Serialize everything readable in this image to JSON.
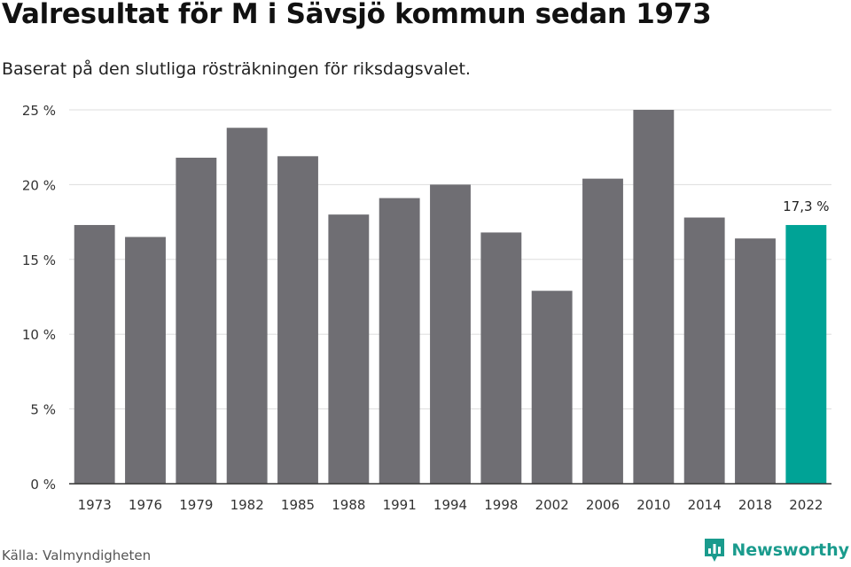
{
  "header": {
    "title": "Valresultat för M i Sävsjö kommun sedan 1973",
    "subtitle": "Baserat på den slutliga rösträkningen för riksdagsvalet."
  },
  "footer": {
    "source": "Källa: Valmyndigheten",
    "brand": "Newsworthy",
    "brand_icon": "bar-chart-logo-icon"
  },
  "colors": {
    "bar": "#6f6e73",
    "highlight": "#00a396",
    "grid": "#dddddd",
    "axis": "#333333",
    "brand": "#1a9b8d"
  },
  "chart_data": {
    "type": "bar",
    "title": "Valresultat för M i Sävsjö kommun sedan 1973",
    "subtitle": "Baserat på den slutliga rösträkningen för riksdagsvalet.",
    "categories": [
      "1973",
      "1976",
      "1979",
      "1982",
      "1985",
      "1988",
      "1991",
      "1994",
      "1998",
      "2002",
      "2006",
      "2010",
      "2014",
      "2018",
      "2022"
    ],
    "values": [
      17.3,
      16.5,
      21.8,
      23.8,
      21.9,
      18.0,
      19.1,
      20.0,
      16.8,
      12.9,
      20.4,
      25.0,
      17.8,
      16.4,
      17.3
    ],
    "highlight_index": 14,
    "highlight_label": "17,3 %",
    "ylim": [
      0,
      25
    ],
    "yticks": [
      0,
      5,
      10,
      15,
      20,
      25
    ],
    "ytick_labels": [
      "0 %",
      "5 %",
      "10 %",
      "15 %",
      "20 %",
      "25 %"
    ],
    "xlabel": "",
    "ylabel": "",
    "grid": true,
    "legend": "none"
  }
}
